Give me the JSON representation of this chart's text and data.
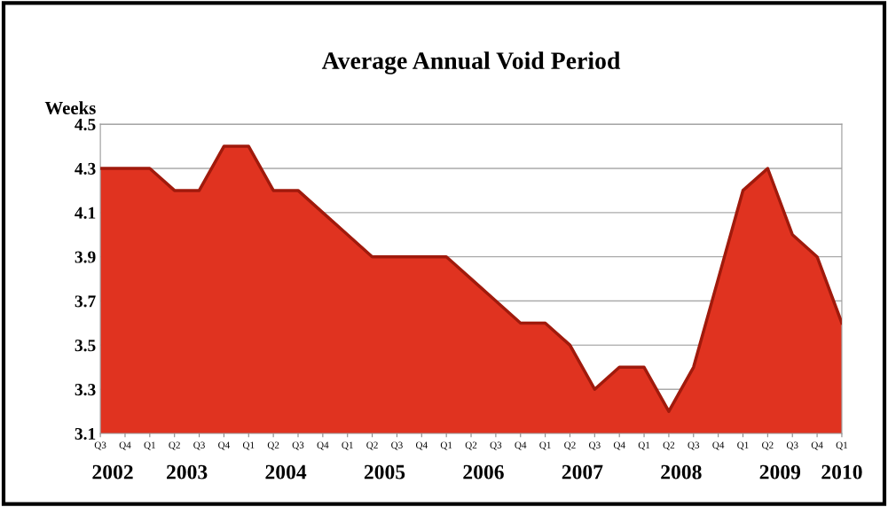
{
  "chart_data": {
    "type": "area",
    "title": "Average Annual Void Period",
    "ylabel": "Weeks",
    "categories": [
      "Q3",
      "Q4",
      "Q1",
      "Q2",
      "Q3",
      "Q4",
      "Q1",
      "Q2",
      "Q3",
      "Q4",
      "Q1",
      "Q2",
      "Q3",
      "Q4",
      "Q1",
      "Q2",
      "Q3",
      "Q4",
      "Q1",
      "Q2",
      "Q3",
      "Q4",
      "Q1",
      "Q2",
      "Q3",
      "Q4",
      "Q1",
      "Q2",
      "Q3",
      "Q4",
      "Q1"
    ],
    "series": [
      {
        "color": "#e03320",
        "values": [
          4.3,
          4.3,
          4.3,
          4.2,
          4.2,
          4.4,
          4.4,
          4.2,
          4.2,
          4.1,
          4.0,
          3.9,
          3.9,
          3.9,
          3.9,
          3.8,
          3.7,
          3.6,
          3.6,
          3.5,
          3.3,
          3.4,
          3.4,
          3.2,
          3.4,
          3.8,
          4.2,
          4.3,
          4.0,
          3.9,
          3.6
        ]
      }
    ],
    "ylim": [
      3.1,
      4.5
    ],
    "yticks": [
      3.1,
      3.3,
      3.5,
      3.7,
      3.9,
      4.1,
      4.3,
      4.5
    ],
    "grid": "y",
    "annotations": [
      "2002",
      "2003",
      "2004",
      "2005",
      "2006",
      "2007",
      "2008",
      "2009",
      "2010"
    ]
  }
}
